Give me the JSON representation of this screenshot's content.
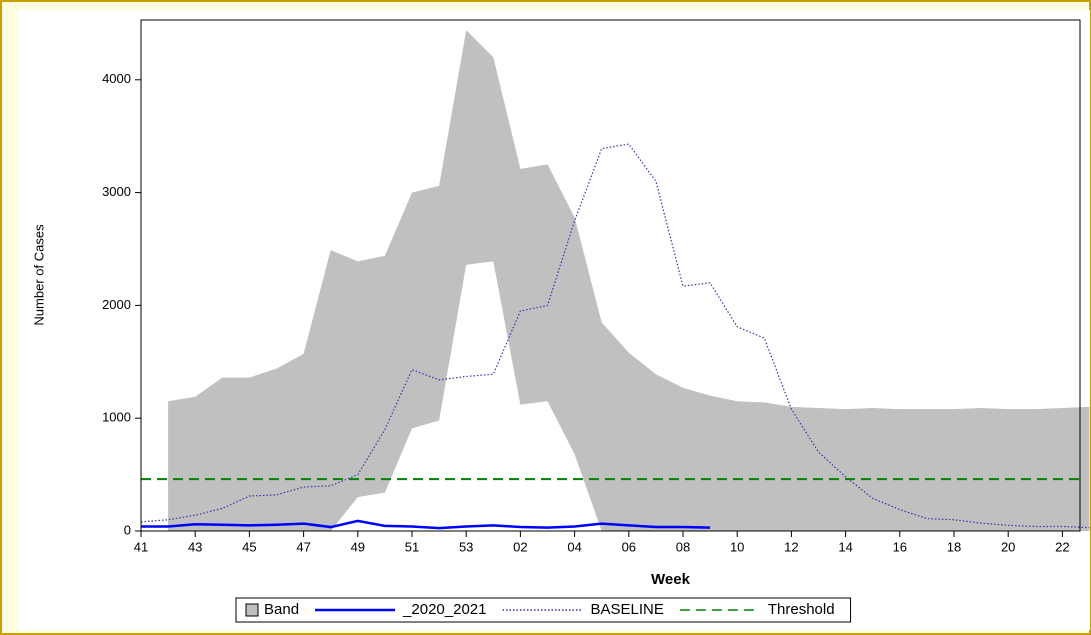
{
  "chart_data": {
    "type": "band-line",
    "x_label": "Week",
    "y_label": "Number of Cases",
    "categories": [
      "41",
      null,
      "43",
      null,
      "45",
      null,
      "47",
      null,
      "49",
      null,
      "51",
      null,
      "53",
      null,
      "02",
      null,
      "04",
      null,
      "06",
      null,
      "08",
      null,
      "10",
      null,
      "12",
      null,
      "14",
      null,
      "16",
      null,
      "18",
      null,
      "20",
      null,
      "22",
      null
    ],
    "ylim": [
      0,
      4530
    ],
    "yticks": [
      0,
      1000,
      2000,
      3000,
      4000
    ],
    "series": [
      {
        "name": "Band",
        "color": "#c0c0c0",
        "lower": [
          null,
          0,
          0,
          0,
          0,
          0,
          0,
          0,
          300,
          340,
          910,
          980,
          2360,
          2390,
          1120,
          1150,
          680,
          0,
          0,
          0,
          0,
          0,
          0,
          0,
          0,
          0,
          0,
          0,
          0,
          0,
          0,
          0,
          0,
          0,
          0,
          0
        ],
        "upper": [
          null,
          1150,
          1190,
          1360,
          1360,
          1440,
          1570,
          2490,
          2390,
          2440,
          3000,
          3060,
          4440,
          4200,
          3210,
          3250,
          2780,
          1850,
          1580,
          1390,
          1270,
          1200,
          1150,
          1140,
          1100,
          1090,
          1080,
          1090,
          1080,
          1080,
          1080,
          1090,
          1080,
          1080,
          1090,
          1100
        ]
      },
      {
        "name": "_2020_2021",
        "color": "#0000ff",
        "style": "solid",
        "values": [
          40,
          40,
          60,
          55,
          50,
          55,
          65,
          35,
          90,
          45,
          40,
          25,
          40,
          50,
          35,
          30,
          40,
          65,
          50,
          35,
          35,
          30,
          null,
          null,
          null,
          null,
          null,
          null,
          null,
          null,
          null,
          null,
          null,
          null,
          null,
          null
        ]
      },
      {
        "name": "BASELINE",
        "color": "#3333aa",
        "style": "dotted",
        "values": [
          80,
          100,
          140,
          200,
          310,
          320,
          390,
          400,
          500,
          900,
          1430,
          1340,
          1370,
          1390,
          1950,
          2000,
          2750,
          3390,
          3430,
          3100,
          2170,
          2200,
          1810,
          1710,
          1080,
          700,
          480,
          290,
          190,
          110,
          100,
          70,
          50,
          40,
          40,
          30
        ]
      },
      {
        "name": "Threshold",
        "color": "#008000",
        "style": "dashed",
        "value": 460
      }
    ]
  }
}
